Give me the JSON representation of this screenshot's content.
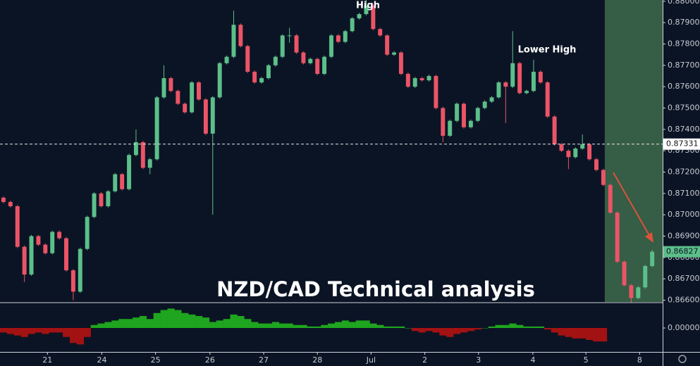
{
  "chart_data": [
    {
      "type": "candlestick",
      "title": "NZD/CAD Technical analysis",
      "annotations": [
        "High",
        "Lower High"
      ],
      "open": [
        0.8708,
        0.8706,
        0.8704,
        0.8685,
        0.8672,
        0.869,
        0.8686,
        0.8682,
        0.8692,
        0.8689,
        0.8674,
        0.8664,
        0.8684,
        0.8699,
        0.871,
        0.8704,
        0.8711,
        0.8719,
        0.8712,
        0.8728,
        0.8734,
        0.8722,
        0.8726,
        0.8755,
        0.8764,
        0.8758,
        0.8752,
        0.8748,
        0.8762,
        0.8754,
        0.8738,
        0.8755,
        0.8771,
        0.8774,
        0.8789,
        0.8779,
        0.8767,
        0.8762,
        0.8764,
        0.877,
        0.8774,
        0.8784,
        0.8784,
        0.8776,
        0.8771,
        0.8773,
        0.8766,
        0.8774,
        0.8784,
        0.8781,
        0.8786,
        0.8792,
        0.8794,
        0.8798,
        0.8787,
        0.8784,
        0.8775,
        0.8776,
        0.8766,
        0.876,
        0.8764,
        0.8763,
        0.8765,
        0.875,
        0.8737,
        0.8744,
        0.8752,
        0.8741,
        0.8744,
        0.875,
        0.8753,
        0.8755,
        0.8762,
        0.876,
        0.8771,
        0.8757,
        0.8758,
        0.8767,
        0.8762,
        0.8746,
        0.8733,
        0.873,
        0.8727,
        0.8731,
        0.8733,
        0.8726,
        0.8721,
        0.8714,
        0.8701,
        0.8678,
        0.8667,
        0.8661,
        0.8666,
        0.8676
      ],
      "high": [
        0.87086,
        0.87066,
        0.87046,
        0.86856,
        0.86906,
        0.86906,
        0.86866,
        0.86926,
        0.86926,
        0.86896,
        0.86746,
        0.86846,
        0.86996,
        0.87106,
        0.87106,
        0.87116,
        0.87196,
        0.87196,
        0.87286,
        0.874,
        0.87346,
        0.87266,
        0.87556,
        0.877,
        0.87646,
        0.87586,
        0.87526,
        0.87626,
        0.87626,
        0.87546,
        0.87556,
        0.87716,
        0.87746,
        0.87956,
        0.87896,
        0.87796,
        0.87676,
        0.87646,
        0.87706,
        0.87746,
        0.87846,
        0.87876,
        0.87846,
        0.87766,
        0.87736,
        0.87736,
        0.87746,
        0.87846,
        0.87846,
        0.87866,
        0.87926,
        0.87946,
        0.8801,
        0.87986,
        0.87876,
        0.87846,
        0.87766,
        0.87766,
        0.87666,
        0.87646,
        0.87646,
        0.87656,
        0.87656,
        0.87506,
        0.87446,
        0.87526,
        0.87526,
        0.87446,
        0.87506,
        0.87536,
        0.87556,
        0.87626,
        0.87626,
        0.8786,
        0.87716,
        0.87586,
        0.87726,
        0.87676,
        0.87626,
        0.87466,
        0.87336,
        0.87306,
        0.87316,
        0.87376,
        0.87336,
        0.87266,
        0.87216,
        0.87146,
        0.87016,
        0.86786,
        0.86676,
        0.86666,
        0.86766,
        0.86836
      ],
      "low": [
        0.87054,
        0.87034,
        0.86844,
        0.86685,
        0.86714,
        0.86854,
        0.86814,
        0.86814,
        0.86884,
        0.86734,
        0.866,
        0.86634,
        0.86834,
        0.86984,
        0.87034,
        0.87034,
        0.87104,
        0.87114,
        0.87114,
        0.87274,
        0.87214,
        0.8719,
        0.87254,
        0.87544,
        0.87574,
        0.87514,
        0.87474,
        0.87474,
        0.87534,
        0.87374,
        0.87,
        0.87544,
        0.87704,
        0.87734,
        0.87784,
        0.87664,
        0.87614,
        0.87614,
        0.87634,
        0.87694,
        0.87734,
        0.87806,
        0.87754,
        0.87704,
        0.87704,
        0.87654,
        0.87654,
        0.87734,
        0.87804,
        0.87804,
        0.87854,
        0.87914,
        0.87934,
        0.87864,
        0.87834,
        0.87744,
        0.87744,
        0.87654,
        0.87594,
        0.87594,
        0.87624,
        0.87624,
        0.87494,
        0.8734,
        0.87364,
        0.87434,
        0.87404,
        0.87404,
        0.87434,
        0.87494,
        0.87524,
        0.87544,
        0.8743,
        0.87594,
        0.87564,
        0.87564,
        0.87574,
        0.87614,
        0.87454,
        0.87324,
        0.87294,
        0.87214,
        0.87264,
        0.87304,
        0.87254,
        0.87204,
        0.87134,
        0.87004,
        0.86774,
        0.86664,
        0.8659,
        0.86604,
        0.86654,
        0.86754
      ],
      "close": [
        0.8706,
        0.8704,
        0.8685,
        0.8672,
        0.869,
        0.8686,
        0.8682,
        0.8692,
        0.8689,
        0.8674,
        0.8664,
        0.8684,
        0.8699,
        0.871,
        0.8704,
        0.8711,
        0.8719,
        0.8712,
        0.8728,
        0.8734,
        0.8722,
        0.8726,
        0.8755,
        0.8764,
        0.8758,
        0.8752,
        0.8748,
        0.8762,
        0.8754,
        0.8738,
        0.8755,
        0.8771,
        0.8774,
        0.8789,
        0.8779,
        0.8767,
        0.8762,
        0.8764,
        0.877,
        0.8774,
        0.8784,
        0.8784,
        0.8776,
        0.8771,
        0.8773,
        0.8766,
        0.8774,
        0.8784,
        0.8781,
        0.8786,
        0.8792,
        0.8794,
        0.8798,
        0.8787,
        0.8784,
        0.8775,
        0.8776,
        0.8766,
        0.876,
        0.8764,
        0.8763,
        0.8765,
        0.875,
        0.8737,
        0.8744,
        0.8752,
        0.8741,
        0.8744,
        0.875,
        0.8753,
        0.8755,
        0.8762,
        0.876,
        0.8771,
        0.8757,
        0.8758,
        0.8767,
        0.8762,
        0.8746,
        0.8733,
        0.873,
        0.8727,
        0.8731,
        0.8733,
        0.8726,
        0.8721,
        0.8714,
        0.8701,
        0.8678,
        0.8667,
        0.8661,
        0.8666,
        0.8676,
        0.86827
      ],
      "up_color": "#5cbf8a",
      "down_color": "#eb5467",
      "xlim": [
        0,
        95
      ],
      "xticks": [
        {
          "value": 6.8,
          "label": "21"
        },
        {
          "value": 14.6,
          "label": "24"
        },
        {
          "value": 22.3,
          "label": "25"
        },
        {
          "value": 30.1,
          "label": "26"
        },
        {
          "value": 37.8,
          "label": "27"
        },
        {
          "value": 45.5,
          "label": "28"
        },
        {
          "value": 53.2,
          "label": "Jul"
        },
        {
          "value": 60.9,
          "label": "2"
        },
        {
          "value": 68.6,
          "label": "3"
        },
        {
          "value": 76.4,
          "label": "4"
        },
        {
          "value": 84.0,
          "label": "5"
        },
        {
          "value": 91.7,
          "label": "8"
        }
      ],
      "ylim": [
        0.86595,
        0.88006
      ],
      "yticks": [
        {
          "value": 0.88,
          "label": "0.88000"
        },
        {
          "value": 0.879,
          "label": "0.87900"
        },
        {
          "value": 0.878,
          "label": "0.87800"
        },
        {
          "value": 0.877,
          "label": "0.87700"
        },
        {
          "value": 0.876,
          "label": "0.87600"
        },
        {
          "value": 0.875,
          "label": "0.87500"
        },
        {
          "value": 0.874,
          "label": "0.87400"
        },
        {
          "value": 0.873,
          "label": "0.87300"
        },
        {
          "value": 0.872,
          "label": "0.87200"
        },
        {
          "value": 0.871,
          "label": "0.87100"
        },
        {
          "value": 0.87,
          "label": "0.87000"
        },
        {
          "value": 0.869,
          "label": "0.86900"
        },
        {
          "value": 0.868,
          "label": "0.86800"
        },
        {
          "value": 0.867,
          "label": "0.86700"
        },
        {
          "value": 0.866,
          "label": "0.86600"
        }
      ],
      "reference_line": 0.87331,
      "highlight_xlim": [
        86.7,
        95
      ],
      "highlight_color": "#3e6a4b"
    },
    {
      "type": "bar",
      "values": [
        -0.0003,
        -0.0004,
        -0.0005,
        -0.0006,
        -0.0004,
        -0.0003,
        -0.0004,
        -0.0003,
        -0.0003,
        -0.0006,
        -0.001,
        -0.0011,
        -0.0006,
        0.0002,
        0.0003,
        0.0004,
        0.0005,
        0.0006,
        0.0006,
        0.0007,
        0.0008,
        0.0006,
        0.001,
        0.0012,
        0.0013,
        0.0012,
        0.001,
        0.0009,
        0.0008,
        0.0007,
        0.0004,
        0.0005,
        0.0006,
        0.0009,
        0.0008,
        0.0006,
        0.0004,
        0.0003,
        0.0003,
        0.0004,
        0.0003,
        0.0003,
        0.0002,
        0.0002,
        0.0001,
        0.0001,
        0.0002,
        0.0003,
        0.0004,
        0.0005,
        0.0004,
        0.0005,
        0.0005,
        0.0003,
        0.0002,
        0.0001,
        0.0001,
        0.0001,
        0,
        -0.0002,
        -0.0003,
        -0.0002,
        -0.0003,
        -0.0005,
        -0.0006,
        -0.0004,
        -0.0003,
        -0.0002,
        -0.0001,
        0,
        0.0001,
        0.0002,
        0.0002,
        0.0003,
        0.0002,
        0.0001,
        0.0001,
        0.0001,
        -0.0001,
        -0.0003,
        -0.0005,
        -0.0006,
        -0.0007,
        -0.0007,
        -0.0008,
        -0.0009,
        -0.0009,
        null,
        null,
        null,
        null,
        null,
        null,
        null
      ],
      "positive_color": "#1fa51f",
      "negative_color": "#a31212",
      "ylim": [
        -0.0016,
        0.0016
      ],
      "yticks": [
        {
          "value": 0,
          "label": "0.00000"
        }
      ]
    }
  ]
}
